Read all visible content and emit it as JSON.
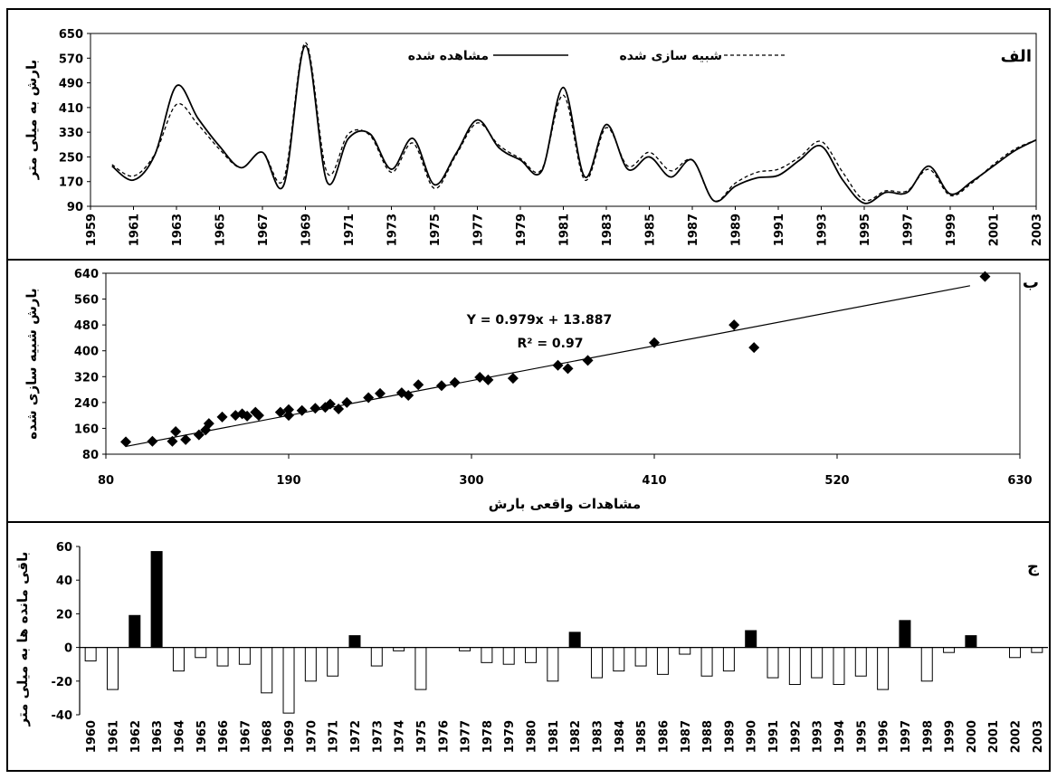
{
  "chart_data": [
    {
      "panel_letter": "الف",
      "type": "line",
      "ylabel": "بارش به میلی متر",
      "ylim": [
        90,
        650
      ],
      "yticks": [
        90,
        170,
        250,
        330,
        410,
        490,
        570,
        650
      ],
      "xlim": [
        1959,
        2003
      ],
      "xticks": [
        "1959",
        "1961",
        "1963",
        "1965",
        "1967",
        "1969",
        "1971",
        "1973",
        "1975",
        "1977",
        "1979",
        "1981",
        "1983",
        "1985",
        "1987",
        "1989",
        "1991",
        "1993",
        "1995",
        "1997",
        "1999",
        "2001",
        "2003"
      ],
      "legend_position": "top-center",
      "x": [
        1960,
        1961,
        1962,
        1963,
        1964,
        1965,
        1966,
        1967,
        1968,
        1969,
        1970,
        1971,
        1972,
        1973,
        1974,
        1975,
        1976,
        1977,
        1978,
        1979,
        1980,
        1981,
        1982,
        1983,
        1984,
        1985,
        1986,
        1987,
        1988,
        1989,
        1990,
        1991,
        1992,
        1993,
        1994,
        1995,
        1996,
        1997,
        1998,
        1999,
        2000,
        2001,
        2002,
        2003
      ],
      "series": [
        {
          "name": "مشاهده شده",
          "style": "solid",
          "values": [
            220,
            175,
            258,
            480,
            375,
            285,
            215,
            265,
            160,
            610,
            170,
            310,
            325,
            210,
            310,
            160,
            260,
            370,
            280,
            240,
            205,
            475,
            185,
            355,
            210,
            250,
            185,
            240,
            108,
            155,
            182,
            190,
            240,
            285,
            175,
            100,
            135,
            135,
            220,
            130,
            170,
            220,
            270,
            305
          ]
        },
        {
          "name": "شبیه سازی شده",
          "style": "dashed",
          "values": [
            225,
            188,
            260,
            420,
            355,
            275,
            215,
            265,
            180,
            620,
            200,
            325,
            320,
            200,
            295,
            148,
            255,
            360,
            288,
            245,
            210,
            450,
            175,
            345,
            220,
            265,
            205,
            240,
            108,
            165,
            200,
            210,
            250,
            300,
            200,
            110,
            140,
            140,
            210,
            125,
            165,
            225,
            275,
            305
          ]
        }
      ]
    },
    {
      "panel_letter": "ب",
      "type": "scatter",
      "xlabel": "مشاهدات واقعی بارش",
      "ylabel": "بارش شبیه سازی شده",
      "xlim": [
        80,
        630
      ],
      "ylim": [
        80,
        640
      ],
      "xticks": [
        80,
        190,
        300,
        410,
        520,
        630
      ],
      "yticks": [
        80,
        160,
        240,
        320,
        400,
        480,
        560,
        640
      ],
      "equation": "Y = 0.979x + 13.887",
      "r_squared": "R² = 0.97",
      "trendline": {
        "slope": 0.979,
        "intercept": 13.887,
        "x_range": [
          92,
          600
        ]
      },
      "points": [
        [
          92,
          118
        ],
        [
          108,
          120
        ],
        [
          120,
          120
        ],
        [
          122,
          150
        ],
        [
          128,
          125
        ],
        [
          136,
          140
        ],
        [
          140,
          155
        ],
        [
          142,
          175
        ],
        [
          150,
          195
        ],
        [
          158,
          200
        ],
        [
          162,
          205
        ],
        [
          165,
          198
        ],
        [
          170,
          210
        ],
        [
          172,
          200
        ],
        [
          185,
          210
        ],
        [
          190,
          218
        ],
        [
          190,
          200
        ],
        [
          198,
          215
        ],
        [
          206,
          222
        ],
        [
          212,
          225
        ],
        [
          215,
          235
        ],
        [
          220,
          220
        ],
        [
          225,
          240
        ],
        [
          238,
          255
        ],
        [
          245,
          268
        ],
        [
          258,
          270
        ],
        [
          262,
          262
        ],
        [
          268,
          295
        ],
        [
          282,
          292
        ],
        [
          290,
          302
        ],
        [
          305,
          318
        ],
        [
          310,
          310
        ],
        [
          325,
          315
        ],
        [
          352,
          355
        ],
        [
          358,
          345
        ],
        [
          370,
          370
        ],
        [
          410,
          425
        ],
        [
          458,
          480
        ],
        [
          470,
          410
        ],
        [
          609,
          630
        ]
      ]
    },
    {
      "panel_letter": "ج",
      "type": "bar",
      "ylabel": "باقی مانده ها به میلی متر",
      "ylim": [
        -40,
        60
      ],
      "yticks": [
        -40,
        -20,
        0,
        20,
        40,
        60
      ],
      "categories": [
        "1960",
        "1961",
        "1962",
        "1963",
        "1964",
        "1965",
        "1966",
        "1967",
        "1968",
        "1969",
        "1970",
        "1971",
        "1972",
        "1973",
        "1974",
        "1975",
        "1976",
        "1977",
        "1978",
        "1979",
        "1980",
        "1981",
        "1982",
        "1983",
        "1984",
        "1985",
        "1986",
        "1987",
        "1988",
        "1989",
        "1990",
        "1991",
        "1992",
        "1993",
        "1994",
        "1995",
        "1996",
        "1997",
        "1998",
        "1999",
        "2000",
        "2001",
        "2002",
        "2003"
      ],
      "values": [
        -8,
        -25,
        19,
        57,
        -14,
        -6,
        -11,
        -10,
        -27,
        -39,
        -20,
        -17,
        7,
        -11,
        -2,
        -25,
        0,
        -2,
        -9,
        -10,
        -9,
        -20,
        9,
        -18,
        -14,
        -11,
        -16,
        -4,
        -17,
        -14,
        10,
        -18,
        -22,
        -18,
        -22,
        -17,
        -25,
        16,
        -20,
        -3,
        7,
        0,
        -6,
        -3
      ],
      "positive_color": "#000000",
      "negative_color": "#ffffff"
    }
  ]
}
